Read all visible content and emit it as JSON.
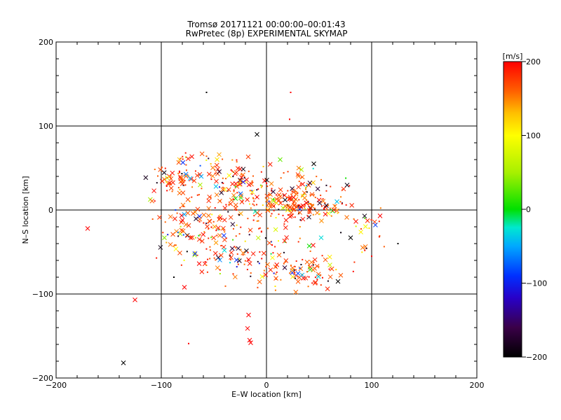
{
  "chart_data": {
    "type": "scatter",
    "title": "Tromsø 20171121 00:00:00–00:01:43",
    "subtitle": "RwPretec (8p) EXPERIMENTAL SKYMAP",
    "xlabel": "E–W location [km]",
    "ylabel": "N–S location [km]",
    "xlim": [
      -200,
      200
    ],
    "ylim": [
      -200,
      200
    ],
    "x_ticks": [
      -200,
      -100,
      0,
      100,
      200
    ],
    "y_ticks": [
      -200,
      -100,
      0,
      100,
      200
    ],
    "x_tick_labels": [
      "−200",
      "−100",
      "0",
      "100",
      "200"
    ],
    "y_tick_labels": [
      "−200",
      "−100",
      "0",
      "100",
      "200"
    ],
    "grid": true,
    "colorbar": {
      "unit": "[m/s]",
      "range": [
        -200,
        200
      ],
      "ticks": [
        200,
        100,
        0,
        -100,
        -200
      ],
      "tick_labels": [
        "200",
        "100",
        "0",
        "−100",
        "−200"
      ],
      "stops": [
        {
          "v": -200,
          "color": "#000000"
        },
        {
          "v": -160,
          "color": "#3a0048"
        },
        {
          "v": -120,
          "color": "#2800c8"
        },
        {
          "v": -90,
          "color": "#0030ff"
        },
        {
          "v": -50,
          "color": "#00a8ff"
        },
        {
          "v": -25,
          "color": "#00e8d0"
        },
        {
          "v": 0,
          "color": "#00e000"
        },
        {
          "v": 50,
          "color": "#a8f000"
        },
        {
          "v": 100,
          "color": "#ffff00"
        },
        {
          "v": 130,
          "color": "#ffc000"
        },
        {
          "v": 160,
          "color": "#ff6000"
        },
        {
          "v": 200,
          "color": "#ff0000"
        }
      ]
    },
    "clusters": [
      {
        "cx": -60,
        "cy": -20,
        "sx": 22,
        "sy": 18,
        "n": 120
      },
      {
        "cx": -85,
        "cy": 35,
        "sx": 12,
        "sy": 10,
        "n": 50
      },
      {
        "cx": -70,
        "cy": 55,
        "sx": 15,
        "sy": 8,
        "n": 30
      },
      {
        "cx": -20,
        "cy": 20,
        "sx": 15,
        "sy": 18,
        "n": 90
      },
      {
        "cx": -40,
        "cy": 35,
        "sx": 15,
        "sy": 10,
        "n": 40
      },
      {
        "cx": 20,
        "cy": 15,
        "sx": 14,
        "sy": 10,
        "n": 70
      },
      {
        "cx": 40,
        "cy": 2,
        "sx": 18,
        "sy": 7,
        "n": 80
      },
      {
        "cx": 30,
        "cy": -75,
        "sx": 20,
        "sy": 9,
        "n": 90
      },
      {
        "cx": -30,
        "cy": -60,
        "sx": 25,
        "sy": 12,
        "n": 60
      },
      {
        "cx": 5,
        "cy": -30,
        "sx": 15,
        "sy": 15,
        "n": 30
      },
      {
        "cx": 95,
        "cy": -20,
        "sx": 10,
        "sy": 18,
        "n": 25
      },
      {
        "cx": 60,
        "cy": 20,
        "sx": 15,
        "sy": 15,
        "n": 20
      },
      {
        "cx": 35,
        "cy": 35,
        "sx": 10,
        "sy": 10,
        "n": 20
      }
    ],
    "isolated_points": [
      {
        "x": -170,
        "y": -22,
        "v": 200,
        "m": "x"
      },
      {
        "x": -125,
        "y": -107,
        "v": 200,
        "m": "x"
      },
      {
        "x": -136,
        "y": -182,
        "v": -200,
        "m": "x"
      },
      {
        "x": -57,
        "y": 140,
        "v": -200,
        "m": "dot"
      },
      {
        "x": 23,
        "y": 140,
        "v": 200,
        "m": "dot"
      },
      {
        "x": 22,
        "y": 108,
        "v": 200,
        "m": "dot"
      },
      {
        "x": -9,
        "y": 90,
        "v": -200,
        "m": "x"
      },
      {
        "x": -17,
        "y": -125,
        "v": 200,
        "m": "x"
      },
      {
        "x": -18,
        "y": -141,
        "v": 200,
        "m": "x"
      },
      {
        "x": -16,
        "y": -155,
        "v": 200,
        "m": "x"
      },
      {
        "x": -15,
        "y": -158,
        "v": 200,
        "m": "x"
      },
      {
        "x": -74,
        "y": -159,
        "v": 200,
        "m": "dot"
      },
      {
        "x": 125,
        "y": -40,
        "v": -200,
        "m": "dot"
      },
      {
        "x": 108,
        "y": -7,
        "v": 200,
        "m": "x"
      },
      {
        "x": -88,
        "y": -80,
        "v": -200,
        "m": "dot"
      },
      {
        "x": -78,
        "y": -92,
        "v": 200,
        "m": "x"
      },
      {
        "x": 45,
        "y": 55,
        "v": -200,
        "m": "x"
      },
      {
        "x": 13,
        "y": 60,
        "v": 30,
        "m": "x"
      },
      {
        "x": -45,
        "y": 66,
        "v": 140,
        "m": "x"
      },
      {
        "x": -62,
        "y": 40,
        "v": -50,
        "m": "x"
      },
      {
        "x": -48,
        "y": 28,
        "v": -40,
        "m": "x"
      },
      {
        "x": 67,
        "y": 10,
        "v": -40,
        "m": "x"
      },
      {
        "x": -97,
        "y": -33,
        "v": 40,
        "m": "x"
      },
      {
        "x": -68,
        "y": -52,
        "v": -100,
        "m": "x"
      },
      {
        "x": -40,
        "y": -48,
        "v": -30,
        "m": "x"
      },
      {
        "x": 68,
        "y": -85,
        "v": -200,
        "m": "x"
      },
      {
        "x": 52,
        "y": -33,
        "v": -30,
        "m": "x"
      },
      {
        "x": 80,
        "y": -33,
        "v": -200,
        "m": "x"
      },
      {
        "x": 100,
        "y": -55,
        "v": 200,
        "m": "dot"
      }
    ]
  }
}
